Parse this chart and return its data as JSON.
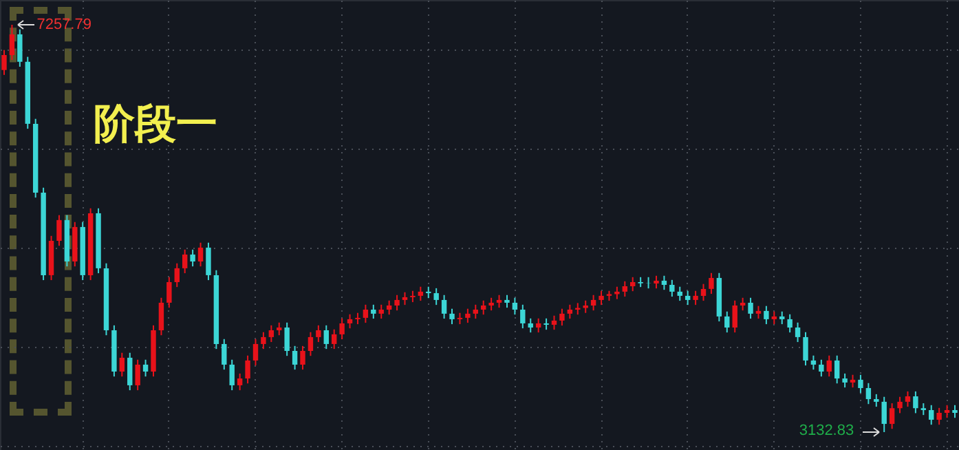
{
  "chart_data": {
    "type": "candlestick",
    "categories": [
      null,
      null,
      null,
      null,
      null,
      null,
      null,
      null,
      null,
      null,
      null,
      null,
      null,
      null,
      null,
      null,
      null,
      null,
      null,
      null,
      null,
      null,
      null,
      null,
      null,
      null,
      null,
      null,
      null,
      null,
      null,
      null,
      null,
      null,
      null,
      null,
      null,
      null,
      null,
      null,
      null,
      null,
      null,
      null,
      null,
      null,
      null,
      null,
      null,
      null,
      null,
      null,
      null,
      null,
      null,
      null,
      null,
      null,
      null,
      null,
      null,
      null,
      null,
      null,
      null,
      null,
      null,
      null,
      null,
      null,
      null,
      null,
      null,
      null,
      null,
      null,
      null,
      null,
      null,
      null,
      null,
      null,
      null,
      null,
      null,
      null,
      null,
      null,
      null,
      null,
      null,
      null,
      null,
      null,
      null,
      null,
      null,
      null,
      null,
      null,
      null,
      null,
      null,
      null,
      null,
      null,
      null,
      null,
      null,
      null,
      null,
      null,
      null,
      null,
      null,
      null,
      null,
      null,
      null,
      null,
      null,
      null
    ],
    "ohlc": [
      [
        6800,
        7002,
        6750,
        6952
      ],
      [
        6952,
        7257.79,
        6902,
        7161
      ],
      [
        7161,
        7211,
        6833,
        6883
      ],
      [
        6883,
        6933,
        6205,
        6255
      ],
      [
        6255,
        6305,
        5508,
        5558
      ],
      [
        5558,
        5608,
        4672,
        4722
      ],
      [
        4722,
        5120,
        4672,
        5070
      ],
      [
        5070,
        5330,
        5020,
        5280
      ],
      [
        5280,
        5330,
        4811,
        4861
      ],
      [
        4861,
        5260,
        4811,
        5210
      ],
      [
        5210,
        5260,
        4672,
        4722
      ],
      [
        4722,
        5399,
        4672,
        5349
      ],
      [
        5349,
        5399,
        4742,
        4792
      ],
      [
        4792,
        4842,
        4114,
        4164
      ],
      [
        4164,
        4214,
        3696,
        3746
      ],
      [
        3746,
        3936,
        3696,
        3886
      ],
      [
        3886,
        3936,
        3557,
        3607
      ],
      [
        3607,
        3866,
        3557,
        3816
      ],
      [
        3816,
        3866,
        3696,
        3746
      ],
      [
        3746,
        4214,
        3696,
        4164
      ],
      [
        4164,
        4493,
        4114,
        4443
      ],
      [
        4443,
        4702,
        4393,
        4652
      ],
      [
        4652,
        4842,
        4602,
        4792
      ],
      [
        4792,
        4981,
        4742,
        4931
      ],
      [
        4931,
        4981,
        4811,
        4861
      ],
      [
        4861,
        5051,
        4811,
        5001
      ],
      [
        5001,
        5051,
        4672,
        4722
      ],
      [
        4722,
        4772,
        3975,
        4025
      ],
      [
        4025,
        4075,
        3766,
        3816
      ],
      [
        3816,
        3866,
        3557,
        3607
      ],
      [
        3607,
        3726,
        3557,
        3676
      ],
      [
        3676,
        3908,
        3626,
        3858
      ],
      [
        3858,
        4075,
        3808,
        4025
      ],
      [
        4025,
        4145,
        3975,
        4095
      ],
      [
        4095,
        4214,
        4045,
        4164
      ],
      [
        4164,
        4242,
        4114,
        4192
      ],
      [
        4192,
        4242,
        3905,
        3955
      ],
      [
        3955,
        4005,
        3766,
        3816
      ],
      [
        3816,
        4005,
        3766,
        3955
      ],
      [
        3955,
        4145,
        3905,
        4095
      ],
      [
        4095,
        4214,
        4045,
        4164
      ],
      [
        4164,
        4214,
        3975,
        4025
      ],
      [
        4025,
        4173,
        3975,
        4123
      ],
      [
        4123,
        4284,
        4073,
        4234
      ],
      [
        4234,
        4326,
        4184,
        4276
      ],
      [
        4276,
        4340,
        4226,
        4290
      ],
      [
        4290,
        4423,
        4240,
        4373
      ],
      [
        4373,
        4423,
        4282,
        4332
      ],
      [
        4332,
        4423,
        4282,
        4373
      ],
      [
        4373,
        4465,
        4323,
        4415
      ],
      [
        4415,
        4521,
        4365,
        4471
      ],
      [
        4471,
        4549,
        4421,
        4499
      ],
      [
        4499,
        4563,
        4449,
        4513
      ],
      [
        4513,
        4605,
        4463,
        4555
      ],
      [
        4555,
        4605,
        4490,
        4540
      ],
      [
        4540,
        4590,
        4421,
        4471
      ],
      [
        4471,
        4521,
        4282,
        4332
      ],
      [
        4332,
        4382,
        4226,
        4276
      ],
      [
        4276,
        4340,
        4226,
        4290
      ],
      [
        4290,
        4382,
        4240,
        4332
      ],
      [
        4332,
        4423,
        4282,
        4373
      ],
      [
        4373,
        4465,
        4323,
        4415
      ],
      [
        4415,
        4493,
        4365,
        4443
      ],
      [
        4443,
        4521,
        4393,
        4471
      ],
      [
        4471,
        4521,
        4393,
        4443
      ],
      [
        4443,
        4493,
        4323,
        4373
      ],
      [
        4373,
        4423,
        4184,
        4234
      ],
      [
        4234,
        4284,
        4142,
        4192
      ],
      [
        4192,
        4284,
        4142,
        4234
      ],
      [
        4234,
        4284,
        4170,
        4220
      ],
      [
        4220,
        4312,
        4170,
        4262
      ],
      [
        4262,
        4382,
        4212,
        4332
      ],
      [
        4332,
        4423,
        4282,
        4373
      ],
      [
        4373,
        4440,
        4323,
        4390
      ],
      [
        4390,
        4465,
        4340,
        4415
      ],
      [
        4415,
        4521,
        4365,
        4471
      ],
      [
        4471,
        4563,
        4421,
        4513
      ],
      [
        4513,
        4563,
        4463,
        4530
      ],
      [
        4530,
        4605,
        4480,
        4555
      ],
      [
        4555,
        4660,
        4505,
        4610
      ],
      [
        4610,
        4702,
        4560,
        4652
      ],
      [
        4652,
        4702,
        4602,
        4640
      ],
      [
        4640,
        4702,
        4588,
        4638
      ],
      [
        4638,
        4716,
        4588,
        4666
      ],
      [
        4666,
        4716,
        4574,
        4624
      ],
      [
        4624,
        4674,
        4505,
        4555
      ],
      [
        4555,
        4605,
        4463,
        4513
      ],
      [
        4513,
        4563,
        4421,
        4471
      ],
      [
        4471,
        4563,
        4421,
        4513
      ],
      [
        4513,
        4633,
        4463,
        4583
      ],
      [
        4583,
        4744,
        4533,
        4694
      ],
      [
        4694,
        4744,
        4254,
        4304
      ],
      [
        4304,
        4354,
        4142,
        4192
      ],
      [
        4192,
        4465,
        4142,
        4415
      ],
      [
        4415,
        4493,
        4365,
        4443
      ],
      [
        4443,
        4493,
        4282,
        4332
      ],
      [
        4332,
        4410,
        4282,
        4360
      ],
      [
        4360,
        4410,
        4226,
        4276
      ],
      [
        4276,
        4354,
        4226,
        4304
      ],
      [
        4304,
        4354,
        4226,
        4276
      ],
      [
        4276,
        4326,
        4142,
        4192
      ],
      [
        4192,
        4242,
        4045,
        4095
      ],
      [
        4095,
        4145,
        3808,
        3858
      ],
      [
        3858,
        3908,
        3766,
        3816
      ],
      [
        3816,
        3866,
        3696,
        3746
      ],
      [
        3746,
        3908,
        3696,
        3858
      ],
      [
        3858,
        3908,
        3626,
        3676
      ],
      [
        3676,
        3726,
        3585,
        3635
      ],
      [
        3635,
        3713,
        3585,
        3663
      ],
      [
        3663,
        3713,
        3529,
        3579
      ],
      [
        3579,
        3629,
        3417,
        3467
      ],
      [
        3467,
        3517,
        3390,
        3440
      ],
      [
        3440,
        3490,
        3132.83,
        3216
      ],
      [
        3216,
        3425,
        3166,
        3375
      ],
      [
        3375,
        3490,
        3325,
        3440
      ],
      [
        3440,
        3545,
        3390,
        3495
      ],
      [
        3495,
        3545,
        3325,
        3375
      ],
      [
        3375,
        3425,
        3306,
        3356
      ],
      [
        3356,
        3406,
        3208,
        3258
      ],
      [
        3258,
        3378,
        3208,
        3328
      ],
      [
        3328,
        3406,
        3278,
        3356
      ],
      [
        3356,
        3406,
        3278,
        3328
      ]
    ],
    "annotations": [
      "7257.79",
      "3132.83",
      "阶段一"
    ],
    "grid": true,
    "tick_labels": false
  }
}
